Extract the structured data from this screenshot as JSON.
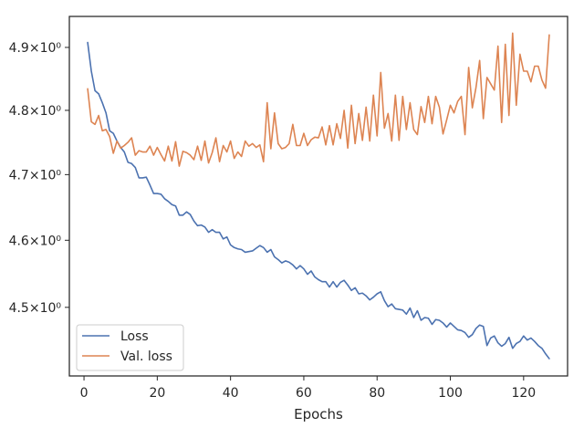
{
  "chart_data": {
    "type": "line",
    "title": "",
    "xlabel": "Epochs",
    "ylabel": "",
    "xlim": [
      -4,
      132
    ],
    "ylim": [
      4.4,
      4.95
    ],
    "y_scale": "log",
    "grid": false,
    "legend_position": "lower-left",
    "x_ticks": [
      0,
      20,
      40,
      60,
      80,
      100,
      120
    ],
    "x_tick_labels": [
      "0",
      "20",
      "40",
      "60",
      "80",
      "100",
      "120"
    ],
    "y_ticks": [
      4.5,
      4.6,
      4.7,
      4.8,
      4.9
    ],
    "y_tick_labels": [
      "4.5×10⁰",
      "4.6×10⁰",
      "4.7×10⁰",
      "4.8×10⁰",
      "4.9×10⁰"
    ],
    "x": [
      1,
      2,
      3,
      4,
      5,
      6,
      7,
      8,
      9,
      10,
      11,
      12,
      13,
      14,
      15,
      16,
      17,
      18,
      19,
      20,
      21,
      22,
      23,
      24,
      25,
      26,
      27,
      28,
      29,
      30,
      31,
      32,
      33,
      34,
      35,
      36,
      37,
      38,
      39,
      40,
      41,
      42,
      43,
      44,
      45,
      46,
      47,
      48,
      49,
      50,
      51,
      52,
      53,
      54,
      55,
      56,
      57,
      58,
      59,
      60,
      61,
      62,
      63,
      64,
      65,
      66,
      67,
      68,
      69,
      70,
      71,
      72,
      73,
      74,
      75,
      76,
      77,
      78,
      79,
      80,
      81,
      82,
      83,
      84,
      85,
      86,
      87,
      88,
      89,
      90,
      91,
      92,
      93,
      94,
      95,
      96,
      97,
      98,
      99,
      100,
      101,
      102,
      103,
      104,
      105,
      106,
      107,
      108,
      109,
      110,
      111,
      112,
      113,
      114,
      115,
      116,
      117,
      118,
      119,
      120,
      121,
      122,
      123,
      124,
      125,
      126,
      127
    ],
    "series": [
      {
        "name": "Loss",
        "color": "#4c72b0",
        "values": [
          4.908,
          4.862,
          4.831,
          4.826,
          4.812,
          4.796,
          4.768,
          4.764,
          4.752,
          4.742,
          4.735,
          4.719,
          4.717,
          4.711,
          4.695,
          4.695,
          4.696,
          4.684,
          4.671,
          4.671,
          4.67,
          4.663,
          4.659,
          4.654,
          4.652,
          4.638,
          4.638,
          4.643,
          4.639,
          4.629,
          4.622,
          4.623,
          4.62,
          4.612,
          4.616,
          4.612,
          4.612,
          4.602,
          4.605,
          4.593,
          4.589,
          4.587,
          4.586,
          4.582,
          4.583,
          4.584,
          4.588,
          4.592,
          4.589,
          4.582,
          4.586,
          4.575,
          4.571,
          4.566,
          4.569,
          4.567,
          4.563,
          4.557,
          4.562,
          4.557,
          4.549,
          4.554,
          4.545,
          4.541,
          4.538,
          4.538,
          4.53,
          4.538,
          4.53,
          4.537,
          4.54,
          4.533,
          4.525,
          4.529,
          4.52,
          4.521,
          4.517,
          4.511,
          4.515,
          4.52,
          4.523,
          4.51,
          4.501,
          4.505,
          4.498,
          4.497,
          4.496,
          4.49,
          4.499,
          4.485,
          4.495,
          4.481,
          4.485,
          4.484,
          4.475,
          4.482,
          4.481,
          4.477,
          4.471,
          4.477,
          4.472,
          4.467,
          4.466,
          4.463,
          4.456,
          4.46,
          4.469,
          4.474,
          4.472,
          4.444,
          4.455,
          4.458,
          4.448,
          4.443,
          4.447,
          4.456,
          4.44,
          4.447,
          4.45,
          4.458,
          4.452,
          4.455,
          4.45,
          4.444,
          4.44,
          4.432,
          4.425
        ]
      },
      {
        "name": "Val. loss",
        "color": "#dd8452",
        "values": [
          4.834,
          4.782,
          4.778,
          4.792,
          4.768,
          4.77,
          4.759,
          4.733,
          4.752,
          4.741,
          4.745,
          4.75,
          4.757,
          4.73,
          4.737,
          4.735,
          4.735,
          4.744,
          4.73,
          4.742,
          4.731,
          4.721,
          4.744,
          4.721,
          4.751,
          4.713,
          4.736,
          4.734,
          4.73,
          4.723,
          4.744,
          4.722,
          4.752,
          4.718,
          4.734,
          4.757,
          4.72,
          4.745,
          4.735,
          4.752,
          4.725,
          4.735,
          4.728,
          4.752,
          4.744,
          4.748,
          4.742,
          4.746,
          4.72,
          4.812,
          4.74,
          4.796,
          4.748,
          4.74,
          4.742,
          4.748,
          4.778,
          4.745,
          4.745,
          4.764,
          4.745,
          4.754,
          4.758,
          4.757,
          4.774,
          4.746,
          4.776,
          4.746,
          4.779,
          4.756,
          4.8,
          4.741,
          4.808,
          4.748,
          4.795,
          4.753,
          4.805,
          4.752,
          4.824,
          4.76,
          4.86,
          4.772,
          4.795,
          4.752,
          4.824,
          4.753,
          4.822,
          4.77,
          4.812,
          4.77,
          4.762,
          4.806,
          4.781,
          4.822,
          4.779,
          4.822,
          4.805,
          4.763,
          4.785,
          4.808,
          4.796,
          4.814,
          4.822,
          4.762,
          4.868,
          4.804,
          4.836,
          4.879,
          4.787,
          4.852,
          4.842,
          4.832,
          4.902,
          4.781,
          4.905,
          4.792,
          4.923,
          4.808,
          4.889,
          4.862,
          4.862,
          4.845,
          4.87,
          4.87,
          4.848,
          4.835,
          4.92
        ]
      }
    ]
  }
}
